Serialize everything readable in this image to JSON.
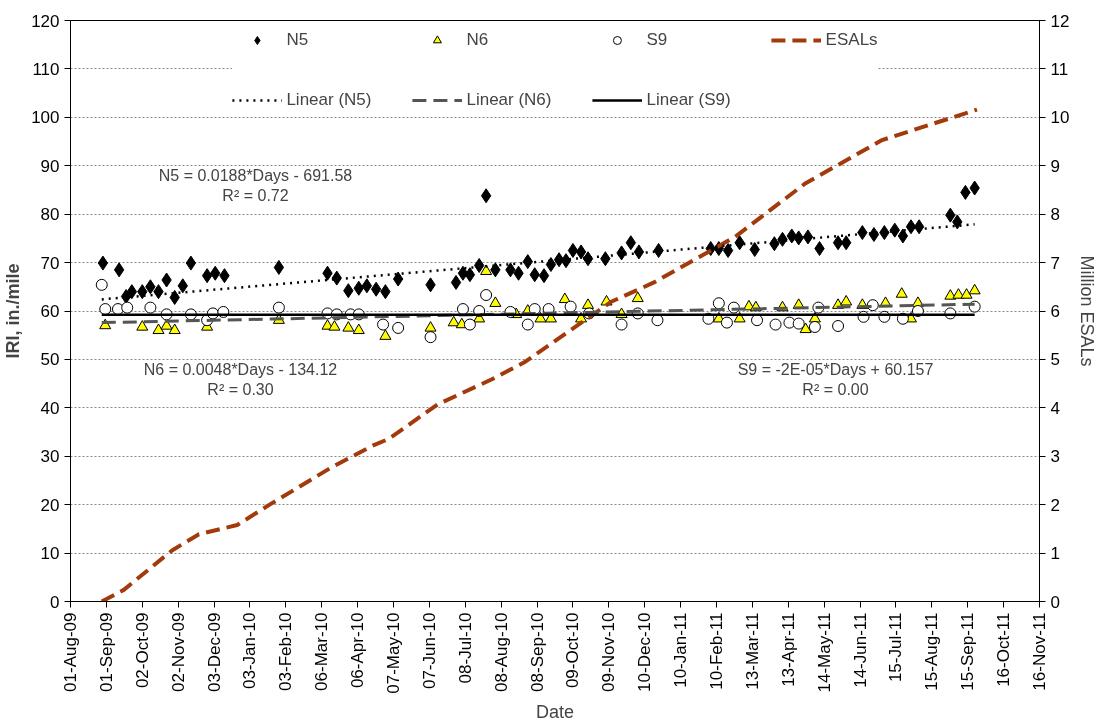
{
  "chart_data": {
    "type": "scatter",
    "xlabel": "Date",
    "ylabel": "IRI, in./mile",
    "y2label": "Million ESALs",
    "xlim": [
      "2009-08-01",
      "2011-11-16"
    ],
    "xticks": [
      {
        "value": "2009-08-01",
        "label": "01-Aug-09"
      },
      {
        "value": "2009-09-01",
        "label": "01-Sep-09"
      },
      {
        "value": "2009-10-02",
        "label": "02-Oct-09"
      },
      {
        "value": "2009-11-02",
        "label": "02-Nov-09"
      },
      {
        "value": "2009-12-03",
        "label": "03-Dec-09"
      },
      {
        "value": "2010-01-03",
        "label": "03-Jan-10"
      },
      {
        "value": "2010-02-03",
        "label": "03-Feb-10"
      },
      {
        "value": "2010-03-06",
        "label": "06-Mar-10"
      },
      {
        "value": "2010-04-06",
        "label": "06-Apr-10"
      },
      {
        "value": "2010-05-07",
        "label": "07-May-10"
      },
      {
        "value": "2010-06-07",
        "label": "07-Jun-10"
      },
      {
        "value": "2010-07-08",
        "label": "08-Jul-10"
      },
      {
        "value": "2010-08-08",
        "label": "08-Aug-10"
      },
      {
        "value": "2010-09-08",
        "label": "08-Sep-10"
      },
      {
        "value": "2010-10-09",
        "label": "09-Oct-10"
      },
      {
        "value": "2010-11-09",
        "label": "09-Nov-10"
      },
      {
        "value": "2010-12-10",
        "label": "10-Dec-10"
      },
      {
        "value": "2011-01-10",
        "label": "10-Jan-11"
      },
      {
        "value": "2011-02-10",
        "label": "10-Feb-11"
      },
      {
        "value": "2011-03-13",
        "label": "13-Mar-11"
      },
      {
        "value": "2011-04-13",
        "label": "13-Apr-11"
      },
      {
        "value": "2011-05-14",
        "label": "14-May-11"
      },
      {
        "value": "2011-06-14",
        "label": "14-Jun-11"
      },
      {
        "value": "2011-07-15",
        "label": "15-Jul-11"
      },
      {
        "value": "2011-08-15",
        "label": "15-Aug-11"
      },
      {
        "value": "2011-09-15",
        "label": "15-Sep-11"
      },
      {
        "value": "2011-10-16",
        "label": "16-Oct-11"
      },
      {
        "value": "2011-11-16",
        "label": "16-Nov-11"
      }
    ],
    "ylim": [
      0,
      120
    ],
    "yticks": [
      0,
      10,
      20,
      30,
      40,
      50,
      60,
      70,
      80,
      90,
      100,
      110,
      120
    ],
    "y2lim": [
      0,
      12
    ],
    "y2ticks": [
      0,
      1,
      2,
      3,
      4,
      5,
      6,
      7,
      8,
      9,
      10,
      11,
      12
    ],
    "grid": "y",
    "legend": "top",
    "series": [
      {
        "name": "N5",
        "marker": "diamond",
        "color": "#000000",
        "x": [
          "2009-08-29",
          "2009-09-12",
          "2009-09-18",
          "2009-09-23",
          "2009-10-02",
          "2009-10-09",
          "2009-10-16",
          "2009-10-23",
          "2009-10-30",
          "2009-11-06",
          "2009-11-13",
          "2009-11-27",
          "2009-12-04",
          "2009-12-12",
          "2010-01-28",
          "2010-03-11",
          "2010-03-19",
          "2010-03-29",
          "2010-04-07",
          "2010-04-14",
          "2010-04-22",
          "2010-04-30",
          "2010-05-11",
          "2010-06-08",
          "2010-06-30",
          "2010-07-06",
          "2010-07-12",
          "2010-07-20",
          "2010-07-26",
          "2010-08-03",
          "2010-08-16",
          "2010-08-23",
          "2010-08-31",
          "2010-09-06",
          "2010-09-14",
          "2010-09-20",
          "2010-09-27",
          "2010-10-03",
          "2010-10-09",
          "2010-10-16",
          "2010-10-22",
          "2010-11-06",
          "2010-11-20",
          "2010-11-28",
          "2010-12-05",
          "2010-12-22",
          "2011-02-05",
          "2011-02-12",
          "2011-02-20",
          "2011-03-02",
          "2011-03-15",
          "2011-04-01",
          "2011-04-08",
          "2011-04-16",
          "2011-04-22",
          "2011-04-30",
          "2011-05-10",
          "2011-05-26",
          "2011-06-02",
          "2011-06-16",
          "2011-06-26",
          "2011-07-05",
          "2011-07-14",
          "2011-07-21",
          "2011-07-28",
          "2011-08-04",
          "2011-08-31",
          "2011-09-06",
          "2011-09-13",
          "2011-09-21"
        ],
        "values": [
          69.9,
          68.5,
          63,
          64,
          64,
          65,
          64,
          66.4,
          62.8,
          65.2,
          69.9,
          67.3,
          67.8,
          67.3,
          69,
          67.8,
          66.8,
          64.2,
          64.7,
          65.2,
          64.5,
          64,
          66.6,
          65.4,
          65.9,
          67.8,
          67.5,
          69.4,
          83.8,
          68.5,
          68.5,
          67.8,
          70.2,
          67.5,
          67.3,
          69.6,
          70.6,
          70.4,
          72.5,
          72.2,
          70.8,
          70.8,
          72,
          74.1,
          72.2,
          72.5,
          72.9,
          72.9,
          72.5,
          74.1,
          72.7,
          73.9,
          74.8,
          75.5,
          75.1,
          75.3,
          72.9,
          74.1,
          74.1,
          76.2,
          75.8,
          76.2,
          76.7,
          75.5,
          77.4,
          77.4,
          79.8,
          78.4,
          84.5,
          85.4
        ]
      },
      {
        "name": "N6",
        "marker": "triangle",
        "color": "#ffff00",
        "x": [
          "2009-08-31",
          "2009-10-02",
          "2009-10-16",
          "2009-10-23",
          "2009-10-30",
          "2009-11-27",
          "2010-01-28",
          "2010-03-11",
          "2010-03-17",
          "2010-03-29",
          "2010-04-07",
          "2010-04-30",
          "2010-06-08",
          "2010-06-28",
          "2010-07-05",
          "2010-07-20",
          "2010-07-26",
          "2010-08-03",
          "2010-08-21",
          "2010-08-31",
          "2010-09-11",
          "2010-09-20",
          "2010-10-02",
          "2010-10-16",
          "2010-10-22",
          "2010-11-07",
          "2010-11-20",
          "2010-12-04",
          "2011-02-12",
          "2011-03-02",
          "2011-03-10",
          "2011-03-16",
          "2011-04-08",
          "2011-04-22",
          "2011-04-28",
          "2011-05-06",
          "2011-05-26",
          "2011-06-02",
          "2011-06-16",
          "2011-07-06",
          "2011-07-20",
          "2011-07-28",
          "2011-08-03",
          "2011-08-31",
          "2011-09-07",
          "2011-09-14",
          "2011-09-21"
        ],
        "values": [
          57,
          56.7,
          56,
          56.9,
          56,
          56.7,
          58.1,
          56.9,
          56.7,
          56.5,
          56,
          54.8,
          56.5,
          57.6,
          57.2,
          58.4,
          68.2,
          61.6,
          59.3,
          60,
          58.4,
          58.4,
          62.4,
          58.4,
          61.2,
          61.9,
          59.3,
          62.6,
          58.4,
          58.4,
          60.9,
          60.7,
          60.7,
          61.2,
          56.2,
          58.4,
          61.2,
          61.9,
          61.2,
          61.6,
          63.5,
          58.4,
          61.6,
          63.1,
          63.3,
          63.3,
          64.2
        ]
      },
      {
        "name": "S9",
        "marker": "circle",
        "color": "#ffffff",
        "x": [
          "2009-08-28",
          "2009-08-31",
          "2009-09-11",
          "2009-09-19",
          "2009-10-09",
          "2009-10-23",
          "2009-11-13",
          "2009-11-27",
          "2009-12-02",
          "2009-12-11",
          "2010-01-28",
          "2010-03-11",
          "2010-03-19",
          "2010-03-31",
          "2010-04-07",
          "2010-04-28",
          "2010-05-11",
          "2010-06-08",
          "2010-07-06",
          "2010-07-12",
          "2010-07-20",
          "2010-07-26",
          "2010-08-16",
          "2010-08-31",
          "2010-09-06",
          "2010-09-18",
          "2010-10-07",
          "2010-10-23",
          "2010-11-20",
          "2010-12-04",
          "2010-12-21",
          "2011-02-03",
          "2011-02-12",
          "2011-02-19",
          "2011-02-25",
          "2011-03-17",
          "2011-04-02",
          "2011-04-14",
          "2011-04-22",
          "2011-05-06",
          "2011-05-09",
          "2011-05-26",
          "2011-06-17",
          "2011-06-25",
          "2011-07-05",
          "2011-07-21",
          "2011-08-03",
          "2011-08-31",
          "2011-09-21"
        ],
        "values": [
          65.4,
          60.4,
          60.4,
          60.7,
          60.7,
          59.3,
          59.3,
          58.1,
          59.5,
          59.8,
          60.7,
          59.5,
          59.3,
          59.3,
          59.3,
          57.2,
          56.5,
          54.6,
          60.4,
          57.2,
          60,
          63.3,
          59.8,
          57.2,
          60.4,
          60.4,
          60.9,
          59.5,
          57.2,
          59.5,
          58.1,
          58.4,
          61.6,
          57.6,
          60.7,
          58.1,
          57.2,
          57.6,
          57.4,
          56.7,
          60.7,
          56.9,
          58.8,
          61.2,
          58.8,
          58.4,
          60,
          59.5,
          60.9
        ]
      },
      {
        "name": "ESALs",
        "type": "line",
        "axis": "y2",
        "line_style": "dashed",
        "color": "#a33a0b",
        "x": [
          "2009-08-28",
          "2009-09-16",
          "2009-10-28",
          "2009-11-20",
          "2009-12-23",
          "2010-01-20",
          "2010-03-13",
          "2010-04-19",
          "2010-05-03",
          "2010-06-14",
          "2010-07-31",
          "2010-08-28",
          "2010-11-11",
          "2010-12-18",
          "2011-02-26",
          "2011-04-28",
          "2011-07-03",
          "2011-09-23"
        ],
        "values": [
          0,
          0.24,
          1.06,
          1.39,
          1.58,
          2.0,
          2.75,
          3.22,
          3.36,
          4.07,
          4.59,
          4.94,
          6.19,
          6.59,
          7.53,
          8.64,
          9.53,
          10.16
        ]
      },
      {
        "name": "Linear (N5)",
        "type": "line",
        "line_style": "dotted",
        "color": "#000000",
        "x": [
          "2009-08-28",
          "2011-09-21"
        ],
        "values": [
          62.4,
          77.9
        ]
      },
      {
        "name": "Linear (N6)",
        "type": "line",
        "line_style": "dashed",
        "color": "#555555",
        "x": [
          "2009-08-28",
          "2011-09-21"
        ],
        "values": [
          57.6,
          61.4
        ]
      },
      {
        "name": "Linear (S9)",
        "type": "line",
        "line_style": "solid",
        "color": "#000000",
        "x": [
          "2009-08-28",
          "2011-09-21"
        ],
        "values": [
          59.2,
          59.2
        ]
      }
    ],
    "annotations": [
      "N5 = 0.0188*Days - 691.58\nR² = 0.72",
      "N6 = 0.0048*Days - 134.12\nR² = 0.30",
      "S9 = -2E-05*Days + 60.157\nR² = 0.00"
    ]
  }
}
